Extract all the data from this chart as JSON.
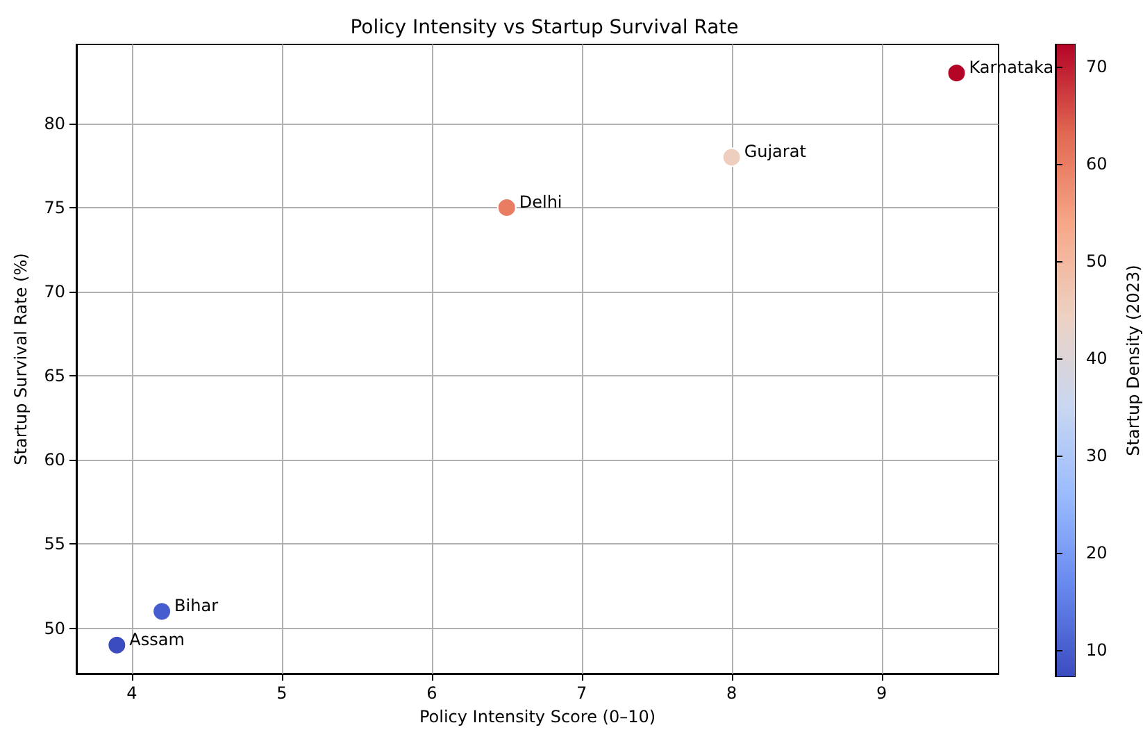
{
  "chart_data": {
    "type": "scatter",
    "title": "Policy Intensity vs Startup Survival Rate",
    "xlabel": "Policy Intensity Score (0–10)",
    "ylabel": "Startup Survival Rate (%)",
    "clabel": "Startup Density (2023)",
    "x": [
      3.9,
      4.2,
      6.5,
      8.0,
      9.5
    ],
    "values": [
      49,
      51,
      75,
      78,
      83
    ],
    "cvalues": [
      7.3,
      10,
      60,
      45,
      72.3
    ],
    "clim": [
      7.3,
      72.3
    ],
    "cticks": [
      10,
      20,
      30,
      40,
      50,
      60,
      70
    ],
    "xlim": [
      3.63,
      9.78
    ],
    "xticks": [
      4,
      5,
      6,
      7,
      8,
      9
    ],
    "ylim": [
      47.3,
      84.7
    ],
    "yticks": [
      50,
      55,
      60,
      65,
      70,
      75,
      80
    ],
    "annotations": [
      {
        "text": "Assam",
        "x": 3.9,
        "y": 49
      },
      {
        "text": "Bihar",
        "x": 4.2,
        "y": 51
      },
      {
        "text": "Delhi",
        "x": 6.5,
        "y": 75
      },
      {
        "text": "Gujarat",
        "x": 8.0,
        "y": 78
      },
      {
        "text": "Karnataka",
        "x": 9.5,
        "y": 83
      }
    ],
    "grid": true,
    "marker": "circle"
  }
}
